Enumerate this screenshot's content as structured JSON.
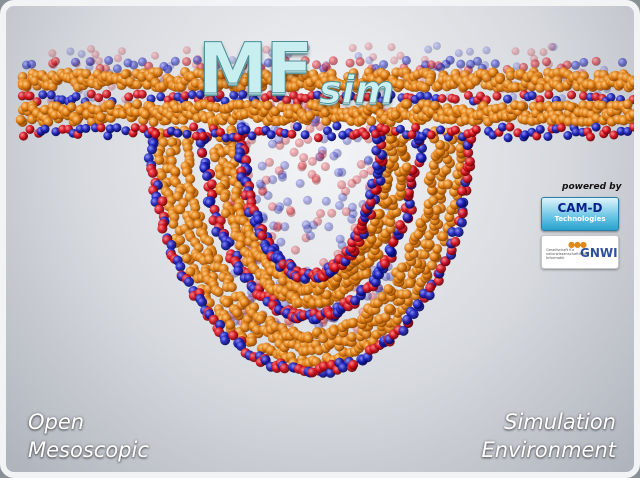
{
  "app": {
    "title": "MF",
    "subtitle": "sim"
  },
  "branding": {
    "powered_by": "powered by",
    "sponsor1_line1": "CAM-D",
    "sponsor1_line2": "Technologies",
    "sponsor2_mark": "GNWI",
    "sponsor2_small": "Gesellschaft für naturwissenschaftliche Informatik"
  },
  "tagline": {
    "left_line1": "Open",
    "left_line2": "Mesoscopic",
    "right_line1": "Simulation",
    "right_line2": "Environment"
  },
  "colors": {
    "bead_orange": "#e07d12",
    "bead_red": "#d4101c",
    "bead_blue": "#1a1fb4",
    "title_fill": "#c9eef0"
  }
}
